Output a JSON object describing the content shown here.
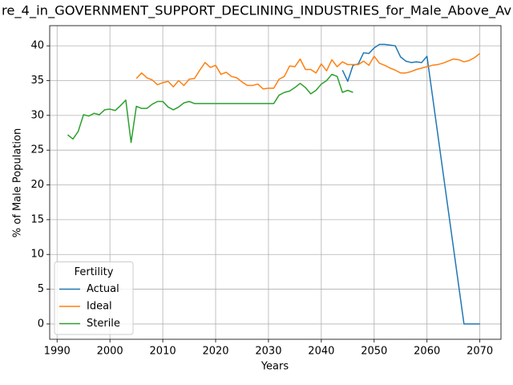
{
  "chart_data": {
    "type": "line",
    "title": "re_4_in_GOVERNMENT_SUPPORT_DECLINING_INDUSTRIES_for_Male_Above_Av",
    "x_label": "Years",
    "y_label": "% of Male Population",
    "legend_title": "Fertility",
    "legend": "lower left",
    "grid": true,
    "xlim": [
      1988.6,
      2074
    ],
    "ylim": [
      -2.2,
      42.9
    ],
    "xticks": [
      1990,
      2000,
      2010,
      2020,
      2030,
      2040,
      2050,
      2060,
      2070
    ],
    "yticks": [
      0,
      5,
      10,
      15,
      20,
      25,
      30,
      35,
      40
    ],
    "x": [
      1992,
      1993,
      1994,
      1995,
      1996,
      1997,
      1998,
      1999,
      2000,
      2001,
      2002,
      2003,
      2004,
      2005,
      2006,
      2007,
      2008,
      2009,
      2010,
      2011,
      2012,
      2013,
      2014,
      2015,
      2016,
      2017,
      2018,
      2019,
      2020,
      2021,
      2022,
      2023,
      2024,
      2025,
      2026,
      2027,
      2028,
      2029,
      2030,
      2031,
      2032,
      2033,
      2034,
      2035,
      2036,
      2037,
      2038,
      2039,
      2040,
      2041,
      2042,
      2043,
      2044,
      2045,
      2046,
      2047,
      2048,
      2049,
      2050,
      2051,
      2052,
      2053,
      2054,
      2055,
      2056,
      2057,
      2058,
      2059,
      2060,
      2061,
      2062,
      2063,
      2064,
      2065,
      2066,
      2067,
      2068,
      2069,
      2070
    ],
    "series": [
      {
        "name": "Actual",
        "color": "#1f77b4",
        "values": [
          null,
          null,
          null,
          null,
          null,
          null,
          null,
          null,
          null,
          null,
          null,
          null,
          null,
          null,
          null,
          null,
          null,
          null,
          null,
          null,
          null,
          null,
          null,
          null,
          null,
          null,
          null,
          null,
          null,
          null,
          null,
          null,
          null,
          null,
          null,
          null,
          null,
          null,
          null,
          null,
          null,
          null,
          null,
          null,
          null,
          null,
          null,
          null,
          null,
          null,
          null,
          null,
          36.5,
          34.9,
          37.2,
          37.4,
          39.0,
          38.9,
          39.7,
          40.2,
          40.2,
          40.1,
          40.0,
          38.4,
          37.8,
          37.6,
          37.7,
          37.6,
          38.5,
          33.0,
          27.5,
          22.0,
          16.5,
          11.0,
          5.5,
          0,
          0,
          0,
          0
        ]
      },
      {
        "name": "Ideal",
        "color": "#ff7f0e",
        "values": [
          null,
          null,
          null,
          null,
          null,
          null,
          null,
          null,
          null,
          null,
          null,
          null,
          null,
          35.3,
          36.1,
          35.4,
          35.1,
          34.4,
          34.7,
          34.9,
          34.1,
          35.0,
          34.3,
          35.2,
          35.3,
          36.5,
          37.6,
          36.9,
          37.2,
          35.9,
          36.2,
          35.6,
          35.4,
          34.8,
          34.3,
          34.3,
          34.5,
          33.8,
          33.9,
          33.9,
          35.2,
          35.6,
          37.1,
          37.0,
          38.1,
          36.6,
          36.6,
          36.1,
          37.4,
          36.4,
          38.0,
          37.0,
          37.7,
          37.3,
          37.3,
          37.3,
          37.8,
          37.2,
          38.5,
          37.5,
          37.2,
          36.8,
          36.5,
          36.1,
          36.1,
          36.3,
          36.6,
          36.8,
          37.0,
          37.2,
          37.3,
          37.5,
          37.8,
          38.1,
          38.0,
          37.7,
          37.9,
          38.3,
          38.9
        ]
      },
      {
        "name": "Sterile",
        "color": "#2ca02c",
        "values": [
          27.2,
          26.6,
          27.7,
          30.1,
          29.9,
          30.3,
          30.1,
          30.8,
          30.9,
          30.7,
          31.4,
          32.2,
          26.1,
          31.3,
          31.0,
          31.0,
          31.6,
          32.0,
          32.0,
          31.2,
          30.8,
          31.2,
          31.8,
          32.0,
          31.7,
          31.7,
          31.7,
          31.7,
          31.7,
          31.7,
          31.7,
          31.7,
          31.7,
          31.7,
          31.7,
          31.7,
          31.7,
          31.7,
          31.7,
          31.7,
          32.9,
          33.3,
          33.5,
          34.0,
          34.6,
          34.0,
          33.1,
          33.6,
          34.5,
          35.0,
          35.9,
          35.6,
          33.3,
          33.6,
          33.3,
          null,
          null,
          null,
          null,
          null,
          null,
          null,
          null,
          null,
          null,
          null,
          null,
          null,
          null,
          null,
          null,
          null,
          null,
          null,
          null,
          null,
          null,
          null,
          null
        ]
      }
    ]
  }
}
